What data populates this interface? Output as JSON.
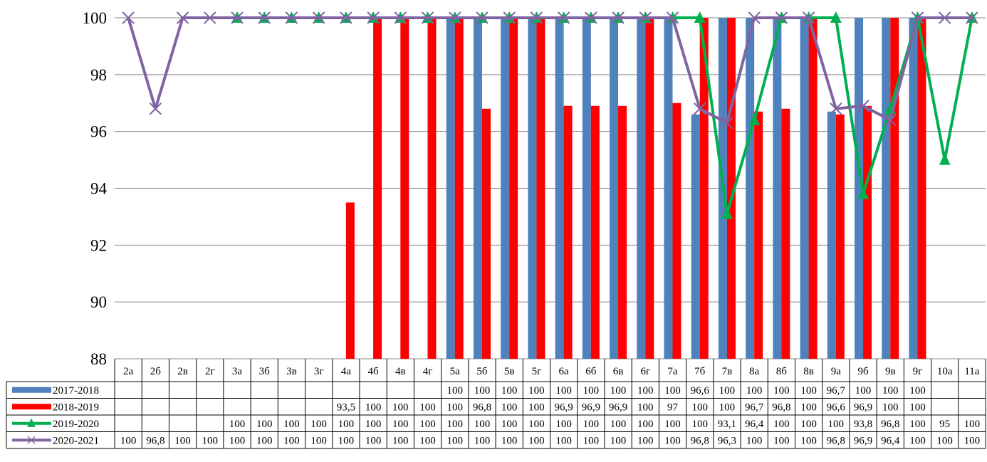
{
  "chart_data": {
    "type": "bar",
    "title": "",
    "xlabel": "",
    "ylabel": "",
    "ylim": [
      88,
      100
    ],
    "yticks": [
      88,
      90,
      92,
      94,
      96,
      98,
      100
    ],
    "grid": true,
    "legend_placement": "data-table-left",
    "categories": [
      "2а",
      "2б",
      "2в",
      "2г",
      "3а",
      "3б",
      "3в",
      "3г",
      "4а",
      "4б",
      "4в",
      "4г",
      "5а",
      "5б",
      "5в",
      "5г",
      "6а",
      "6б",
      "6в",
      "6г",
      "7а",
      "7б",
      "7в",
      "8а",
      "8б",
      "8в",
      "9а",
      "9б",
      "9в",
      "9г",
      "10а",
      "11а"
    ],
    "series": [
      {
        "name": "2017-2018",
        "kind": "bar",
        "color": "#4F81BD",
        "values": [
          null,
          null,
          null,
          null,
          null,
          null,
          null,
          null,
          null,
          null,
          null,
          null,
          100,
          100,
          100,
          100,
          100,
          100,
          100,
          100,
          100,
          96.6,
          100,
          100,
          100,
          100,
          96.7,
          100,
          100,
          100,
          null,
          null
        ],
        "labels": [
          "",
          "",
          "",
          "",
          "",
          "",
          "",
          "",
          "",
          "",
          "",
          "",
          "100",
          "100",
          "100",
          "100",
          "100",
          "100",
          "100",
          "100",
          "100",
          "96,6",
          "100",
          "100",
          "100",
          "100",
          "96,7",
          "100",
          "100",
          "100",
          "",
          ""
        ]
      },
      {
        "name": "2018-2019",
        "kind": "bar",
        "color": "#FF0000",
        "values": [
          null,
          null,
          null,
          null,
          null,
          null,
          null,
          null,
          93.5,
          100,
          100,
          100,
          100,
          96.8,
          100,
          100,
          96.9,
          96.9,
          96.9,
          100,
          97,
          100,
          100,
          96.7,
          96.8,
          100,
          96.6,
          96.9,
          100,
          100,
          null,
          null
        ],
        "labels": [
          "",
          "",
          "",
          "",
          "",
          "",
          "",
          "",
          "93,5",
          "100",
          "100",
          "100",
          "100",
          "96,8",
          "100",
          "100",
          "96,9",
          "96,9",
          "96,9",
          "100",
          "97",
          "100",
          "100",
          "96,7",
          "96,8",
          "100",
          "96,6",
          "96,9",
          "100",
          "100",
          "",
          ""
        ]
      },
      {
        "name": "2019-2020",
        "kind": "line",
        "marker": "triangle",
        "color": "#00B050",
        "values": [
          null,
          null,
          null,
          null,
          100,
          100,
          100,
          100,
          100,
          100,
          100,
          100,
          100,
          100,
          100,
          100,
          100,
          100,
          100,
          100,
          100,
          100,
          93.1,
          96.4,
          100,
          100,
          100,
          93.8,
          96.8,
          100,
          95,
          100
        ],
        "labels": [
          "",
          "",
          "",
          "",
          "100",
          "100",
          "100",
          "100",
          "100",
          "100",
          "100",
          "100",
          "100",
          "100",
          "100",
          "100",
          "100",
          "100",
          "100",
          "100",
          "100",
          "100",
          "93,1",
          "96,4",
          "100",
          "100",
          "100",
          "93,8",
          "96,8",
          "100",
          "95",
          "100"
        ]
      },
      {
        "name": "2020-2021",
        "kind": "line",
        "marker": "x",
        "color": "#8064A2",
        "values": [
          100,
          96.8,
          100,
          100,
          100,
          100,
          100,
          100,
          100,
          100,
          100,
          100,
          100,
          100,
          100,
          100,
          100,
          100,
          100,
          100,
          100,
          96.8,
          96.3,
          100,
          100,
          100,
          96.8,
          96.9,
          96.4,
          100,
          100,
          100
        ],
        "labels": [
          "100",
          "96,8",
          "100",
          "100",
          "100",
          "100",
          "100",
          "100",
          "100",
          "100",
          "100",
          "100",
          "100",
          "100",
          "100",
          "100",
          "100",
          "100",
          "100",
          "100",
          "100",
          "96,8",
          "96,3",
          "100",
          "100",
          "100",
          "96,8",
          "96,9",
          "96,4",
          "100",
          "100",
          "100"
        ]
      }
    ]
  }
}
